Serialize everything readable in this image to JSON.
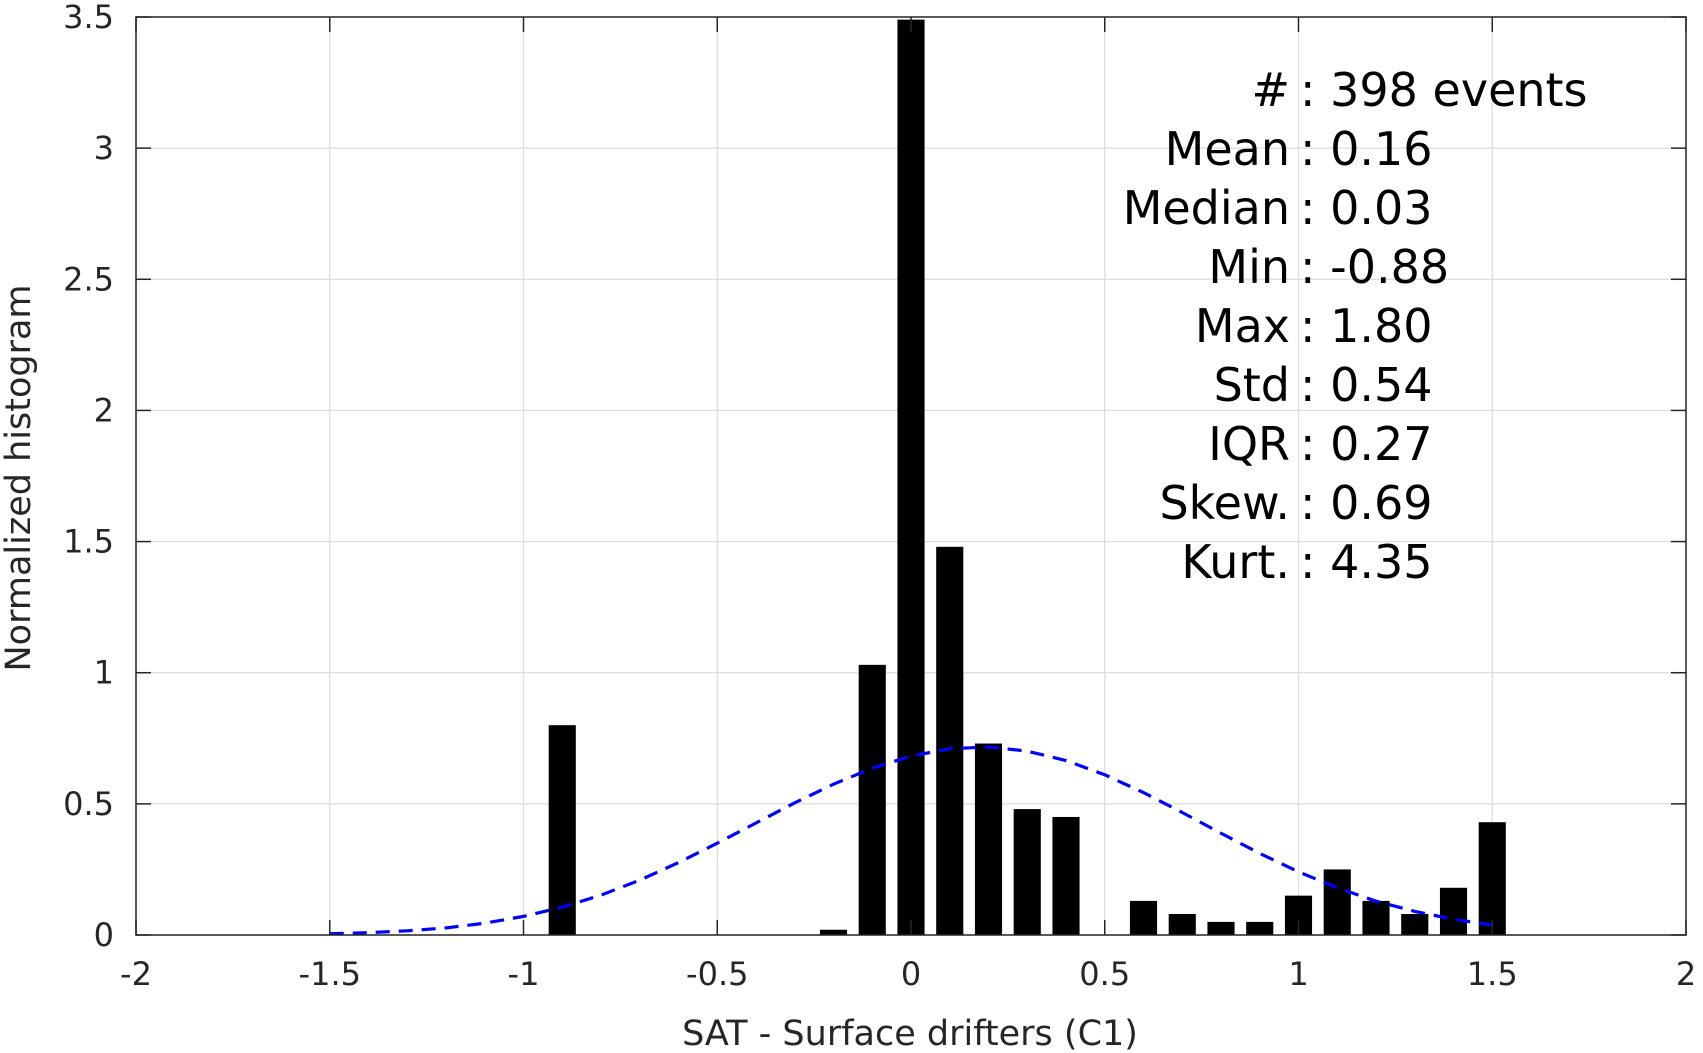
{
  "chart_data": {
    "type": "bar",
    "xlabel": "SAT - Surface drifters (C1)",
    "ylabel": "Normalized histogram",
    "xlim": [
      -2,
      2
    ],
    "ylim": [
      0,
      3.5
    ],
    "xticks": [
      -2,
      -1.5,
      -1,
      -0.5,
      0,
      0.5,
      1,
      1.5,
      2
    ],
    "xtick_labels": [
      "-2",
      "-1.5",
      "-1",
      "-0.5",
      "0",
      "0.5",
      "1",
      "1.5",
      "2"
    ],
    "yticks": [
      0,
      0.5,
      1,
      1.5,
      2,
      2.5,
      3,
      3.5
    ],
    "ytick_labels": [
      "0",
      "0.5",
      "1",
      "1.5",
      "2",
      "2.5",
      "3",
      "3.5"
    ],
    "grid": true,
    "bar_width": 0.07,
    "bars": {
      "x": [
        -0.9,
        -0.2,
        -0.1,
        0.0,
        0.1,
        0.2,
        0.3,
        0.4,
        0.6,
        0.7,
        0.8,
        0.9,
        1.0,
        1.1,
        1.2,
        1.3,
        1.4,
        1.5
      ],
      "y": [
        0.8,
        0.02,
        1.03,
        3.49,
        1.48,
        0.73,
        0.48,
        0.45,
        0.13,
        0.08,
        0.05,
        0.05,
        0.15,
        0.25,
        0.13,
        0.08,
        0.18,
        0.43
      ],
      "color": "#000000"
    },
    "fit_curve": {
      "style": "dashed",
      "color": "#0000ff",
      "x": [
        -1.5,
        -1.4,
        -1.3,
        -1.2,
        -1.1,
        -1.0,
        -0.9,
        -0.8,
        -0.7,
        -0.6,
        -0.5,
        -0.4,
        -0.3,
        -0.2,
        -0.1,
        0.0,
        0.1,
        0.2,
        0.3,
        0.4,
        0.5,
        0.6,
        0.7,
        0.8,
        0.9,
        1.0,
        1.1,
        1.2,
        1.3,
        1.4,
        1.5
      ],
      "y": [
        0.005,
        0.009,
        0.016,
        0.027,
        0.045,
        0.071,
        0.106,
        0.152,
        0.209,
        0.276,
        0.35,
        0.427,
        0.504,
        0.575,
        0.636,
        0.682,
        0.71,
        0.717,
        0.701,
        0.665,
        0.611,
        0.543,
        0.467,
        0.388,
        0.311,
        0.241,
        0.18,
        0.129,
        0.09,
        0.06,
        0.038
      ]
    },
    "stats": [
      {
        "label": "#  ",
        "value": ": 398 events"
      },
      {
        "label": "Mean",
        "value": ": 0.16"
      },
      {
        "label": "Median",
        "value": ": 0.03"
      },
      {
        "label": "Min",
        "value": ": -0.88"
      },
      {
        "label": "Max",
        "value": ": 1.80"
      },
      {
        "label": "Std",
        "value": ": 0.54"
      },
      {
        "label": "IQR",
        "value": ": 0.27"
      },
      {
        "label": "Skew.",
        "value": ": 0.69"
      },
      {
        "label": "Kurt.",
        "value": ": 4.35"
      }
    ]
  }
}
